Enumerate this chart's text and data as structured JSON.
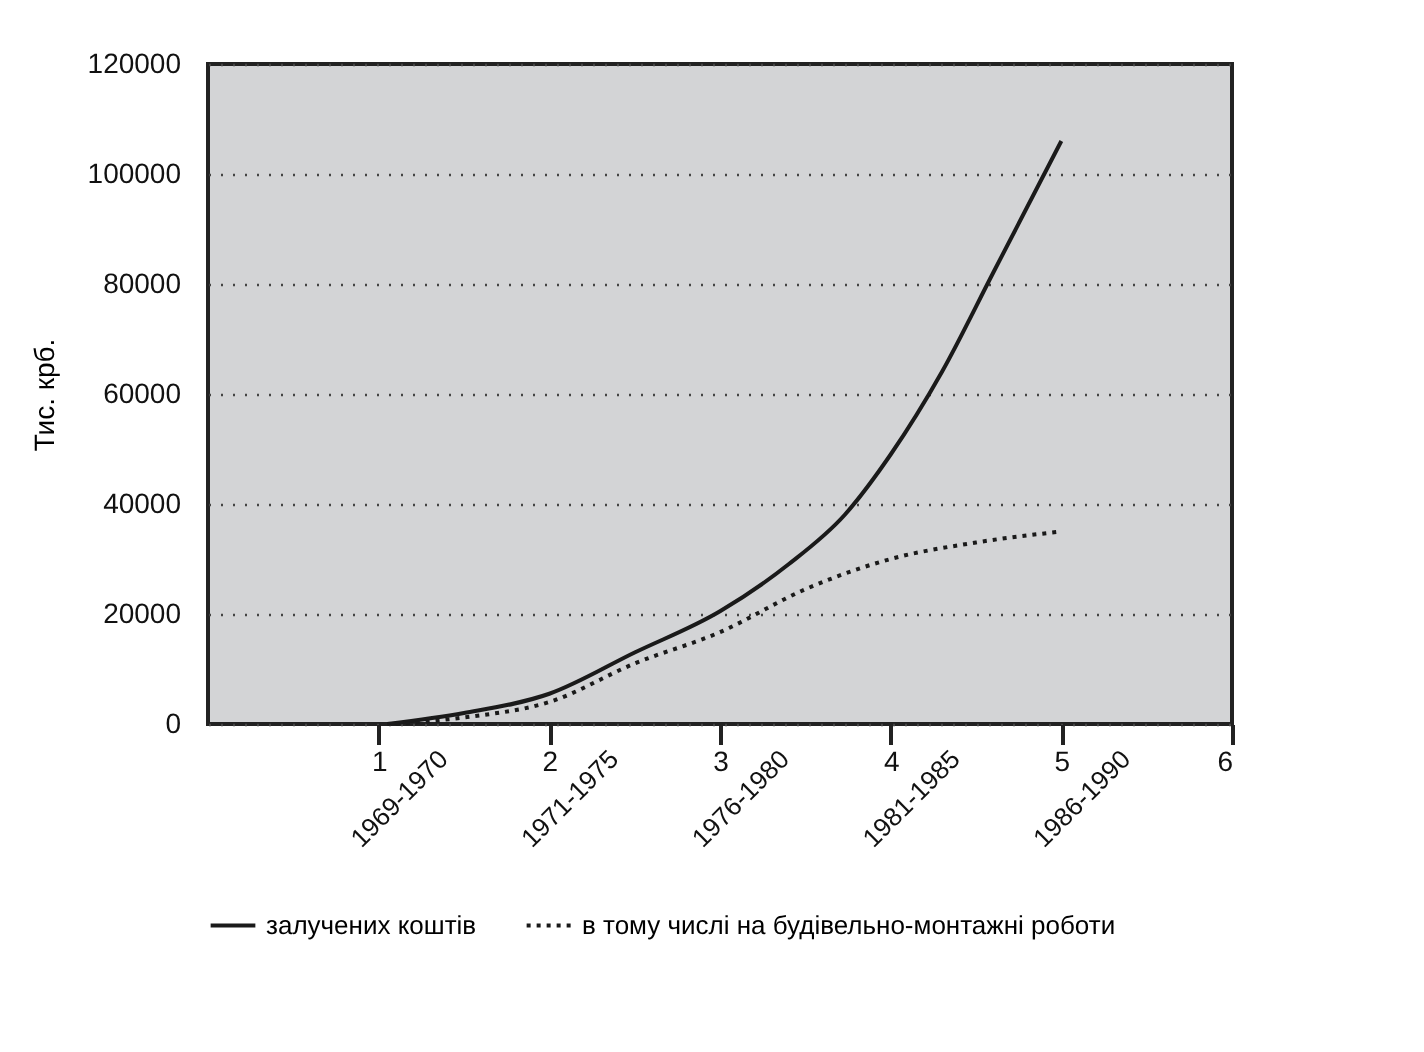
{
  "chart_data": {
    "type": "line",
    "ylabel": "Тис. крб.",
    "xlim": [
      0,
      6
    ],
    "xticks": [
      1,
      2,
      3,
      4,
      5,
      6
    ],
    "annotations": [
      "1969-1970",
      "1971-1975",
      "1976-1980",
      "1981-1985",
      "1986-1990"
    ],
    "ylim": [
      0,
      120000
    ],
    "yticks": [
      0,
      20000,
      40000,
      60000,
      80000,
      100000,
      120000
    ],
    "grid": "y",
    "legend": "bottom",
    "marker": "none",
    "series": [
      {
        "name": "залучених коштів",
        "color": "#1a1a1a",
        "line_style": "solid",
        "x": [
          1.05,
          1.5,
          2,
          2.5,
          3,
          3.4,
          3.73,
          4,
          4.3,
          4.6,
          5
        ],
        "values": [
          0,
          2000,
          5500,
          13000,
          20500,
          29000,
          38000,
          49000,
          64000,
          82000,
          106000
        ]
      },
      {
        "name": "в тому числі на будівельно-монтажні роботи",
        "color": "#1a1a1a",
        "line_style": "dotted",
        "x": [
          1.1,
          1.5,
          2,
          2.5,
          3,
          3.5,
          4,
          4.5,
          5
        ],
        "values": [
          0,
          1200,
          4000,
          11000,
          16700,
          24500,
          30000,
          33000,
          35000
        ]
      }
    ]
  }
}
